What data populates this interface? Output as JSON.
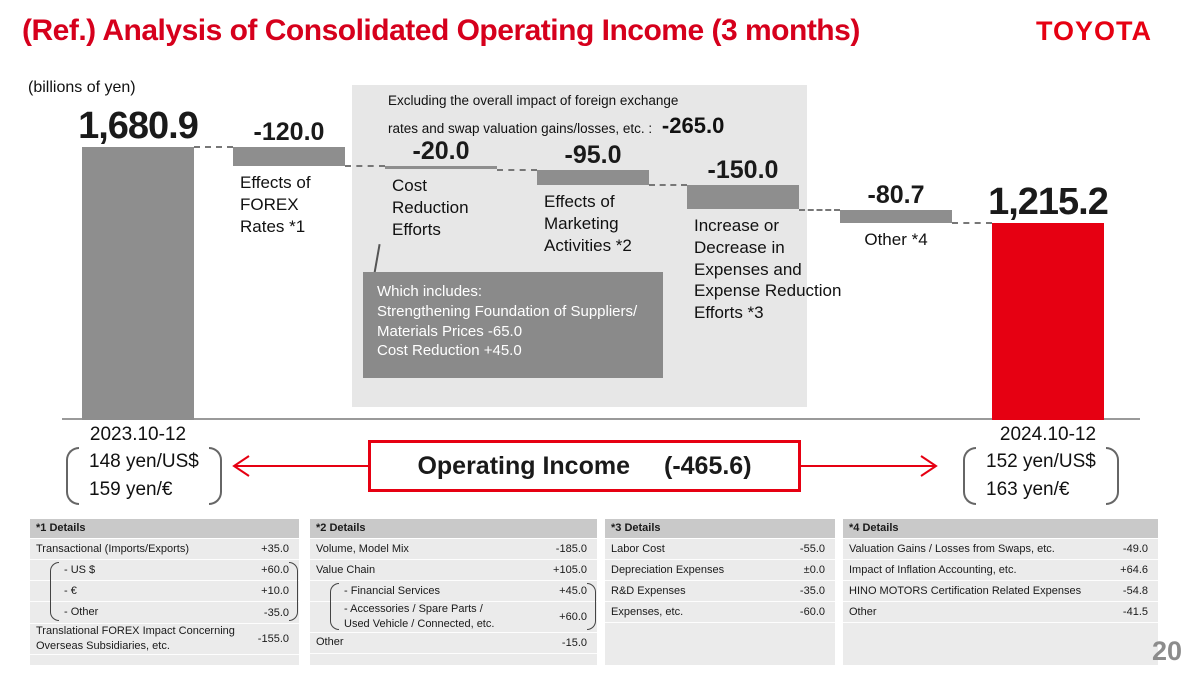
{
  "title": "(Ref.) Analysis of Consolidated Operating Income (3 months)",
  "logo": "TOYOTA",
  "units_label": "(billions of yen)",
  "page_number": "20",
  "colors": {
    "accent_red": "#e60012",
    "bar_gray": "#8e8e8e",
    "backdrop_gray": "#e7e7e7",
    "callout_gray": "#8a8a8a"
  },
  "chart_data": {
    "type": "waterfall",
    "title": "Analysis of Consolidated Operating Income (3 months)",
    "units": "billions of yen",
    "start_value": 1680.9,
    "end_value": 1215.2,
    "total_change": -465.6,
    "bars": [
      {
        "name": "start-2023",
        "kind": "total",
        "value": 1680.9,
        "value_label": "1,680.9",
        "sublabel": ""
      },
      {
        "name": "forex",
        "kind": "delta",
        "delta": -120.0,
        "value_label": "-120.0",
        "sublabel": "Effects of\nFOREX\nRates *1"
      },
      {
        "name": "cost-reduction",
        "kind": "delta",
        "delta": -20.0,
        "value_label": "-20.0",
        "sublabel": "Cost\nReduction\nEfforts"
      },
      {
        "name": "marketing",
        "kind": "delta",
        "delta": -95.0,
        "value_label": "-95.0",
        "sublabel": "Effects of\nMarketing\nActivities *2"
      },
      {
        "name": "expenses",
        "kind": "delta",
        "delta": -150.0,
        "value_label": "-150.0",
        "sublabel": "Increase or\nDecrease in\nExpenses and\nExpense Reduction\nEfforts *3"
      },
      {
        "name": "other",
        "kind": "delta",
        "delta": -80.7,
        "value_label": "-80.7",
        "sublabel": "Other *4",
        "sublabel_center": true
      },
      {
        "name": "end-2024",
        "kind": "total",
        "value": 1215.2,
        "value_label": "1,215.2",
        "sublabel": ""
      }
    ],
    "excluding_note": {
      "line1": "Excluding the overall impact of foreign exchange",
      "line2": "rates and swap valuation gains/losses, etc. :",
      "value_label": "-265.0"
    },
    "which_includes": {
      "lines": [
        "Which includes:",
        "Strengthening Foundation of Suppliers/",
        "Materials Prices   -65.0",
        "Cost Reduction   +45.0"
      ]
    }
  },
  "axis_notes": {
    "left": {
      "period": "2023.10-12",
      "usd": "148 yen/US$",
      "eur": "159 yen/€"
    },
    "right": {
      "period": "2024.10-12",
      "usd": "152 yen/US$",
      "eur": "163 yen/€"
    }
  },
  "operating_income_box": {
    "label": "Operating Income",
    "value": "(-465.6)"
  },
  "footnotes": [
    {
      "header": "*1 Details",
      "rows": [
        {
          "label": "Transactional (Imports/Exports)",
          "value": "+35.0"
        },
        {
          "group": [
            {
              "label": "- US $",
              "value": "+60.0"
            },
            {
              "label": "- €",
              "value": "+10.0"
            },
            {
              "label": "- Other",
              "value": "-35.0"
            }
          ]
        },
        {
          "label": "Translational FOREX Impact Concerning\nOverseas Subsidiaries, etc.",
          "value": "-155.0"
        }
      ]
    },
    {
      "header": "*2 Details",
      "rows": [
        {
          "label": "Volume, Model Mix",
          "value": "-185.0"
        },
        {
          "label": "Value Chain",
          "value": "+105.0"
        },
        {
          "group": [
            {
              "label": "- Financial Services",
              "value": "+45.0"
            },
            {
              "label": "- Accessories / Spare Parts /\n  Used Vehicle / Connected, etc.",
              "value": "+60.0"
            }
          ]
        },
        {
          "label": "Other",
          "value": "-15.0"
        }
      ]
    },
    {
      "header": "*3 Details",
      "rows": [
        {
          "label": "Labor Cost",
          "value": "-55.0"
        },
        {
          "label": "Depreciation Expenses",
          "value": "±0.0"
        },
        {
          "label": "R&D Expenses",
          "value": "-35.0"
        },
        {
          "label": "Expenses, etc.",
          "value": "-60.0"
        }
      ]
    },
    {
      "header": "*4 Details",
      "rows": [
        {
          "label": "Valuation Gains / Losses from Swaps, etc.",
          "value": "-49.0"
        },
        {
          "label": "Impact of Inflation Accounting, etc.",
          "value": "+64.6"
        },
        {
          "label": "HINO MOTORS Certification Related Expenses",
          "value": "-54.8"
        },
        {
          "label": "Other",
          "value": "-41.5"
        }
      ]
    }
  ]
}
